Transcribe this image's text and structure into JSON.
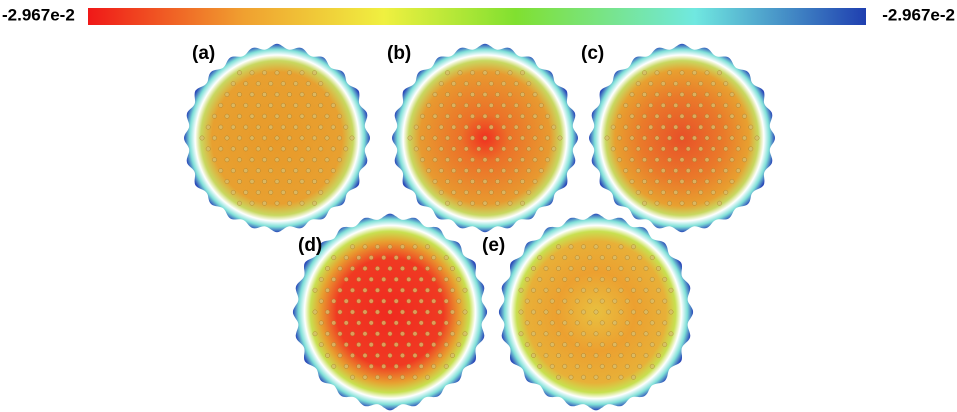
{
  "colorbar": {
    "min_label": "-2.967e-2",
    "max_label": "-2.967e-2"
  },
  "panels": [
    {
      "label": "(a)"
    },
    {
      "label": "(b)"
    },
    {
      "label": "(c)"
    },
    {
      "label": "(d)"
    },
    {
      "label": "(e)"
    }
  ]
}
